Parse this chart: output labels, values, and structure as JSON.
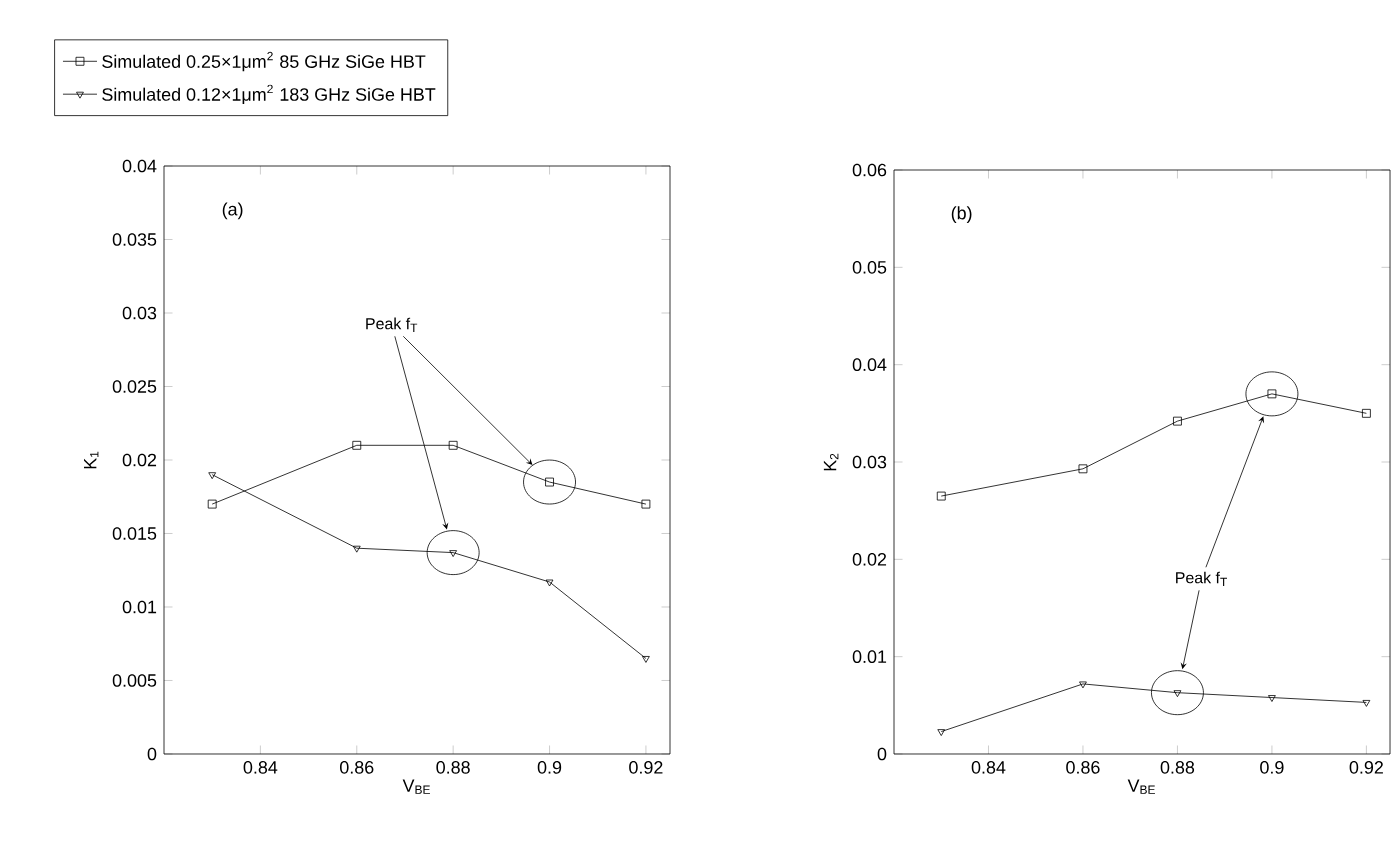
{
  "chart_data": [
    {
      "type": "line",
      "xlabel": "V$_{BE}$",
      "ylabel": "K$_{1}$",
      "x": [
        0.83,
        0.86,
        0.88,
        0.9,
        0.92
      ],
      "xlim": [
        0.82,
        0.925
      ],
      "xticks": [
        0.84,
        0.86,
        0.88,
        0.9,
        0.92
      ],
      "ylim": [
        0,
        0.04
      ],
      "yticks": [
        0,
        0.005,
        0.01,
        0.015,
        0.02,
        0.025,
        0.03,
        0.035,
        0.04
      ],
      "legend": "top left",
      "annotations": [
        "(a)",
        "Peak f$_{T}$"
      ],
      "series": [
        {
          "name": "Simulated 0.25×1μm$^{2}$ 85 GHz SiGe HBT",
          "color": "#000000",
          "marker": "square",
          "values": [
            0.017,
            0.021,
            0.021,
            0.0185,
            0.017
          ]
        },
        {
          "name": "Simulated 0.12×1μm$^{2}$ 183 GHz SiGe HBT",
          "color": "#000000",
          "marker": "triangle",
          "values": [
            0.019,
            0.014,
            0.0137,
            0.0117,
            0.0065
          ]
        }
      ]
    },
    {
      "type": "line",
      "xlabel": "V$_{BE}$",
      "ylabel": "K$_{2}$",
      "x": [
        0.83,
        0.86,
        0.88,
        0.9,
        0.92
      ],
      "xlim": [
        0.82,
        0.925
      ],
      "xticks": [
        0.84,
        0.86,
        0.88,
        0.9,
        0.92
      ],
      "ylim": [
        0,
        0.06
      ],
      "yticks": [
        0,
        0.01,
        0.02,
        0.03,
        0.04,
        0.05,
        0.06
      ],
      "annotations": [
        "(b)",
        "Peak f$_{T}$"
      ],
      "series": [
        {
          "color": "#000000",
          "marker": "square",
          "values": [
            0.0265,
            0.0293,
            0.0342,
            0.037,
            0.035
          ]
        },
        {
          "color": "#000000",
          "marker": "triangle",
          "values": [
            0.0023,
            0.0072,
            0.0063,
            0.0058,
            0.0053
          ]
        }
      ]
    }
  ]
}
